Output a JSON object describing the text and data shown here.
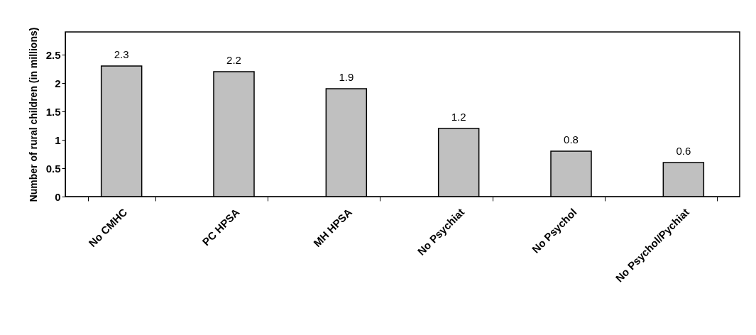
{
  "chart_data": {
    "type": "bar",
    "ylabel": "Number of rural children (in millions)",
    "categories": [
      "No CMHC",
      "PC HPSA",
      "MH HPSA",
      "No Psychiat",
      "No Psychol",
      "No Psychol/Pychiat"
    ],
    "values": [
      2.3,
      2.2,
      1.9,
      1.2,
      0.8,
      0.6
    ],
    "color": "#c0c0c0",
    "ylim": [
      0,
      2.9
    ],
    "yticks": [
      0,
      0.5,
      1,
      1.5,
      2,
      2.5
    ],
    "grid": false,
    "data_labels": true
  }
}
